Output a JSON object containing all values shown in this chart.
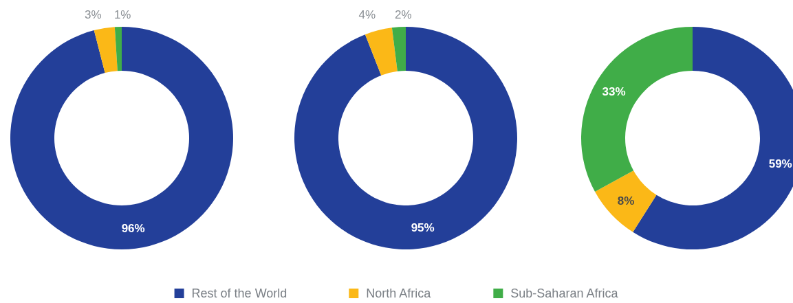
{
  "chart_data": [
    {
      "type": "donut",
      "categories": [
        "Rest of the World",
        "North Africa",
        "Sub-Saharan Africa"
      ],
      "values": [
        96,
        3,
        1
      ],
      "colors": [
        "#233f99",
        "#fbb817",
        "#40ad48"
      ],
      "value_labels": [
        "96%",
        "3%",
        "1%"
      ],
      "legend": "bottom"
    },
    {
      "type": "donut",
      "categories": [
        null,
        null,
        null
      ],
      "values": [
        95,
        4,
        2
      ],
      "colors": [
        "#233f99",
        "#fbb817",
        "#40ad48"
      ],
      "value_labels": [
        "95%",
        "4%",
        "2%"
      ]
    },
    {
      "type": "donut",
      "categories": [
        null,
        null,
        null
      ],
      "values": [
        59,
        8,
        33
      ],
      "colors": [
        "#233f99",
        "#fbb817",
        "#40ad48"
      ],
      "value_labels": [
        "59%",
        "8%",
        "33%"
      ]
    }
  ]
}
